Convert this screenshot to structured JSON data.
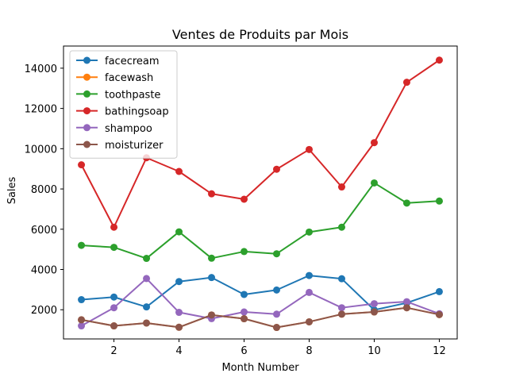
{
  "chart_data": {
    "type": "line",
    "title": "Ventes de Produits par Mois",
    "xlabel": "Month Number",
    "ylabel": "Sales",
    "x": [
      1,
      2,
      3,
      4,
      5,
      6,
      7,
      8,
      9,
      10,
      11,
      12
    ],
    "xlim": [
      0.45,
      12.55
    ],
    "ylim": [
      550,
      15100
    ],
    "xticks": [
      2,
      4,
      6,
      8,
      10,
      12
    ],
    "yticks": [
      2000,
      4000,
      6000,
      8000,
      10000,
      12000,
      14000
    ],
    "grid": false,
    "legend_position": "top-left",
    "series": [
      {
        "name": "facecream",
        "color": "#1f77b4",
        "values": [
          2500,
          2630,
          2140,
          3400,
          3600,
          2760,
          2980,
          3700,
          3540,
          1990,
          2340,
          2900
        ]
      },
      {
        "name": "facewash",
        "color": "#ff7f0e",
        "values": [
          1500,
          1200,
          1340,
          1130,
          1740,
          1555,
          1120,
          1400,
          1780,
          1890,
          2100,
          1760
        ]
      },
      {
        "name": "toothpaste",
        "color": "#2ca02c",
        "values": [
          5200,
          5100,
          4550,
          5870,
          4560,
          4890,
          4780,
          5860,
          6100,
          8300,
          7300,
          7400
        ]
      },
      {
        "name": "bathingsoap",
        "color": "#d62728",
        "values": [
          9200,
          6100,
          9550,
          8870,
          7760,
          7490,
          8980,
          9960,
          8100,
          10300,
          13300,
          14400
        ]
      },
      {
        "name": "shampoo",
        "color": "#9467bd",
        "values": [
          1200,
          2100,
          3550,
          1870,
          1560,
          1890,
          1780,
          2860,
          2100,
          2300,
          2400,
          1800
        ]
      },
      {
        "name": "moisturizer",
        "color": "#8c564b",
        "values": [
          1500,
          1200,
          1340,
          1130,
          1740,
          1555,
          1120,
          1400,
          1780,
          1890,
          2100,
          1760
        ]
      }
    ]
  }
}
